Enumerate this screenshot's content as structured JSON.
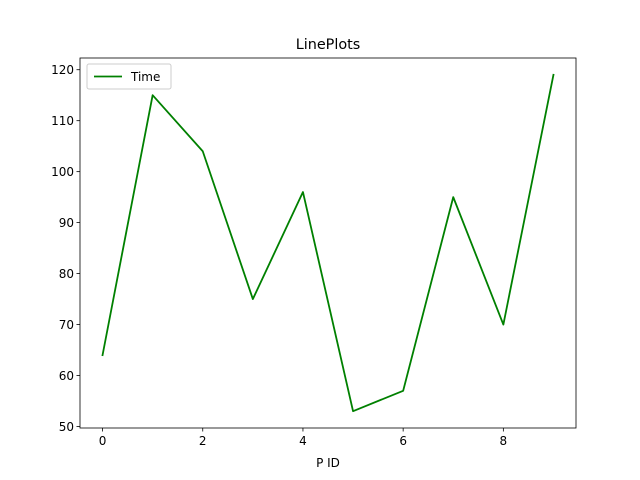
{
  "chart_data": {
    "type": "line",
    "title": "LinePlots",
    "xlabel": "P ID",
    "ylabel": "",
    "x": [
      0,
      1,
      2,
      3,
      4,
      5,
      6,
      7,
      8,
      9
    ],
    "series": [
      {
        "name": "Time",
        "color": "#008000",
        "values": [
          64,
          115,
          104,
          75,
          96,
          53,
          57,
          95,
          70,
          119
        ]
      }
    ],
    "xlim": [
      -0.45,
      9.45
    ],
    "ylim": [
      49.7,
      122.3
    ],
    "xticks": [
      0,
      2,
      4,
      6,
      8
    ],
    "yticks": [
      50,
      60,
      70,
      80,
      90,
      100,
      110,
      120
    ],
    "grid": false,
    "legend": "upper-left"
  }
}
